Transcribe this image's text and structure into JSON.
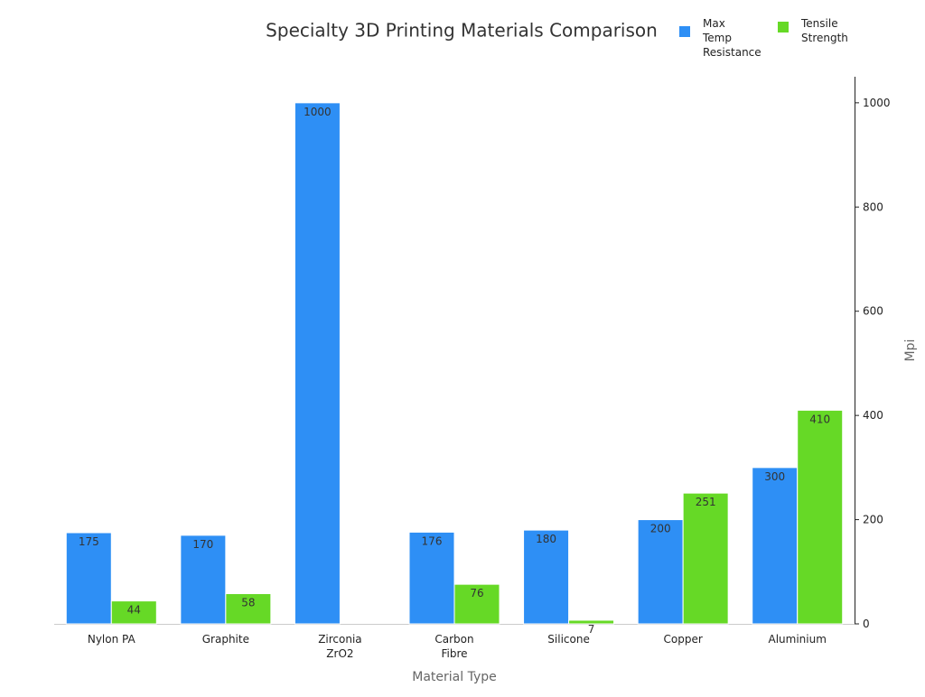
{
  "chart_data": {
    "type": "bar",
    "title": "Specialty 3D Printing Materials Comparison",
    "x_label": "Material Type",
    "y_label": "Mpi",
    "categories": [
      "Nylon PA",
      "Graphite",
      "Zirconia\nZrO2",
      "Carbon\nFibre",
      "Silicone",
      "Copper",
      "Aluminium"
    ],
    "series": [
      {
        "name": "Max Temp Resistance",
        "color": "#2e8ff5",
        "values": [
          175,
          170,
          1000,
          176,
          180,
          200,
          300
        ]
      },
      {
        "name": "Tensile Strength",
        "color": "#66d926",
        "values": [
          44,
          58,
          null,
          76,
          7,
          251,
          410
        ]
      }
    ],
    "ylim": [
      0,
      1050
    ],
    "yticks": [
      0,
      200,
      400,
      600,
      800,
      1000
    ],
    "y_axis_side": "right",
    "grid": false,
    "legend": "top right"
  }
}
